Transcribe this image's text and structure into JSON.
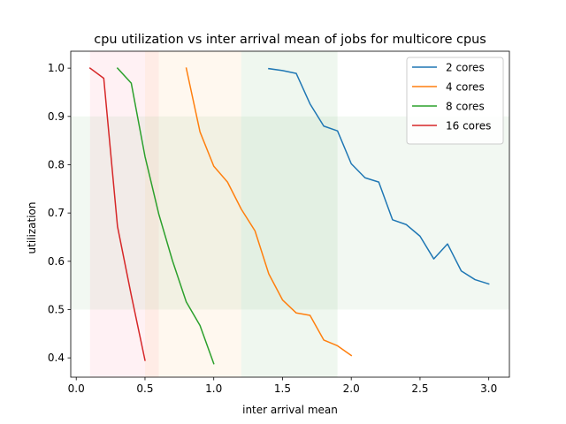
{
  "chart_data": {
    "type": "line",
    "title": "cpu utilization vs inter arrival mean of jobs for multicore cpus",
    "xlabel": "inter arrival mean",
    "ylabel": "utilization",
    "xlim": [
      -0.04,
      3.15
    ],
    "ylim": [
      0.36,
      1.035
    ],
    "xticks": [
      "0.0",
      "0.5",
      "1.0",
      "1.5",
      "2.0",
      "2.5",
      "3.0"
    ],
    "yticks": [
      "0.4",
      "0.5",
      "0.6",
      "0.7",
      "0.8",
      "0.9",
      "1.0"
    ],
    "grid": false,
    "legend_position": "top-right",
    "shaded_regions": [
      {
        "axis": "x",
        "from": 0.1,
        "to": 0.6,
        "color": "#ff9eb0",
        "opacity": 0.14
      },
      {
        "axis": "x",
        "from": 0.5,
        "to": 1.2,
        "color": "#ffd9a6",
        "opacity": 0.18
      },
      {
        "axis": "x",
        "from": 1.2,
        "to": 1.9,
        "color": "#7fbf7f",
        "opacity": 0.12
      },
      {
        "axis": "y",
        "from": 0.5,
        "to": 0.9,
        "color": "#7fbf7f",
        "opacity": 0.1
      }
    ],
    "series": [
      {
        "name": "2 cores",
        "color": "#1f77b4",
        "x": [
          1.4,
          1.5,
          1.6,
          1.7,
          1.8,
          1.9,
          2.0,
          2.1,
          2.2,
          2.3,
          2.4,
          2.5,
          2.6,
          2.7,
          2.8,
          2.9,
          3.0
        ],
        "y": [
          0.999,
          0.995,
          0.989,
          0.926,
          0.88,
          0.87,
          0.802,
          0.773,
          0.764,
          0.686,
          0.676,
          0.652,
          0.605,
          0.636,
          0.58,
          0.562,
          0.553
        ]
      },
      {
        "name": "4 cores",
        "color": "#ff7f0e",
        "x": [
          0.8,
          0.9,
          1.0,
          1.1,
          1.2,
          1.3,
          1.4,
          1.5,
          1.6,
          1.7,
          1.8,
          1.9,
          2.0
        ],
        "y": [
          1.0,
          0.868,
          0.797,
          0.764,
          0.708,
          0.663,
          0.574,
          0.52,
          0.493,
          0.488,
          0.437,
          0.425,
          0.405
        ]
      },
      {
        "name": "8 cores",
        "color": "#2ca02c",
        "x": [
          0.3,
          0.4,
          0.5,
          0.6,
          0.7,
          0.8,
          0.9,
          1.0
        ],
        "y": [
          1.0,
          0.969,
          0.817,
          0.698,
          0.601,
          0.516,
          0.467,
          0.388
        ]
      },
      {
        "name": "16 cores",
        "color": "#d62728",
        "x": [
          0.1,
          0.2,
          0.3,
          0.4,
          0.5
        ],
        "y": [
          1.0,
          0.979,
          0.672,
          0.53,
          0.395
        ]
      }
    ]
  }
}
